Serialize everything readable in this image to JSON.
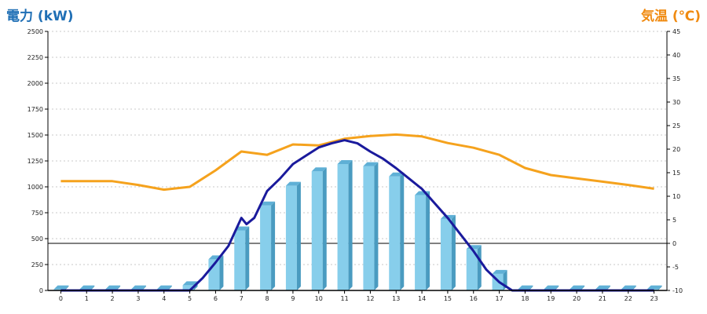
{
  "chart_data": {
    "type": "bar",
    "title": "",
    "left_axis": {
      "label": "電力 (kW)",
      "min": 0,
      "max": 2500,
      "ticks": [
        0,
        250,
        500,
        750,
        1000,
        1250,
        1500,
        1750,
        2000,
        2250,
        2500
      ]
    },
    "right_axis": {
      "label": "気温 (℃)",
      "min": -10,
      "max": 45,
      "ticks": [
        -10,
        -5,
        0,
        5,
        10,
        15,
        20,
        25,
        30,
        35,
        40,
        45
      ]
    },
    "categories": [
      "0",
      "1",
      "2",
      "3",
      "4",
      "5",
      "6",
      "7",
      "8",
      "9",
      "10",
      "11",
      "12",
      "13",
      "14",
      "15",
      "16",
      "17",
      "18",
      "19",
      "20",
      "21",
      "22",
      "23"
    ],
    "series": [
      {
        "kind": "bar",
        "axis": "left",
        "values": [
          10,
          10,
          10,
          10,
          10,
          50,
          300,
          580,
          820,
          1010,
          1150,
          1220,
          1200,
          1100,
          920,
          690,
          400,
          160,
          10,
          10,
          10,
          10,
          10,
          10
        ]
      },
      {
        "kind": "line",
        "axis": "right",
        "values": [
          13.2,
          13.2,
          13.2,
          12.4,
          11.4,
          12.0,
          15.5,
          19.5,
          18.8,
          21.0,
          20.8,
          22.2,
          22.8,
          23.1,
          22.7,
          21.3,
          20.3,
          18.8,
          16.0,
          14.5,
          13.8,
          13.1,
          12.4,
          11.6
        ]
      },
      {
        "kind": "line",
        "axis": "left",
        "x": [
          0,
          5,
          5.5,
          6,
          6.5,
          7,
          7.2,
          7.5,
          8,
          8.5,
          9,
          9.5,
          10,
          10.5,
          11,
          11.5,
          12,
          12.5,
          13,
          13.5,
          14,
          14.5,
          15,
          15.5,
          16,
          16.5,
          17,
          17.5,
          18,
          23
        ],
        "values": [
          0,
          0,
          120,
          270,
          430,
          700,
          640,
          700,
          960,
          1080,
          1220,
          1300,
          1380,
          1420,
          1450,
          1420,
          1340,
          1270,
          1180,
          1080,
          980,
          840,
          700,
          540,
          380,
          200,
          80,
          0,
          0,
          0
        ]
      }
    ],
    "colors": {
      "bar": "#87ceeb",
      "bar_side": "#4a9bc0",
      "bar_top": "#5fb0d6",
      "temperature": "#f5a21d",
      "power": "#1a1a9c",
      "left_title": "#1f6fb5",
      "right_title": "#f08a10",
      "grid": "#c8c8c8"
    },
    "grid": true
  }
}
